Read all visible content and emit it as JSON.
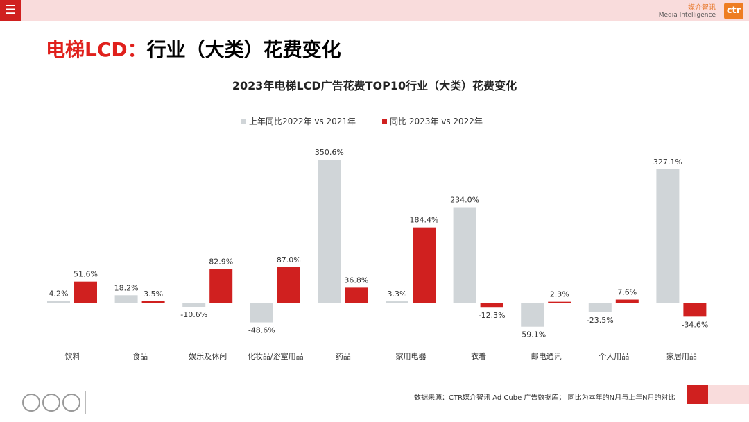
{
  "header": {
    "logo_cn": "媒介智讯",
    "logo_en": "Media Intelligence",
    "logo_mark": "ctr"
  },
  "page_title_red": "电梯LCD：",
  "page_title_black": "行业（大类）花费变化",
  "footer": {
    "source": "数据来源：CTR媒介智讯 Ad Cube 广告数据库；  同比为本年的N月与上年N月的对比"
  },
  "colors": {
    "series1": "#d0d5d8",
    "series2": "#d0201f",
    "accent": "#e0201c"
  },
  "chart_data": {
    "type": "bar",
    "title": "2023年电梯LCD广告花费TOP10行业（大类）花费变化",
    "categories": [
      "饮料",
      "食品",
      "娱乐及休闲",
      "化妆品/浴室用品",
      "药品",
      "家用电器",
      "衣着",
      "邮电通讯",
      "个人用品",
      "家居用品"
    ],
    "series": [
      {
        "name": "上年同比2022年 vs 2021年",
        "values": [
          4.2,
          18.2,
          -10.6,
          -48.6,
          350.6,
          3.3,
          234.0,
          -59.1,
          -23.5,
          327.1
        ]
      },
      {
        "name": "同比 2023年 vs 2022年",
        "values": [
          51.6,
          3.5,
          82.9,
          87.0,
          36.8,
          184.4,
          -12.3,
          2.3,
          7.6,
          -34.6
        ]
      }
    ],
    "unit": "%",
    "legend": "top",
    "grid": false
  }
}
